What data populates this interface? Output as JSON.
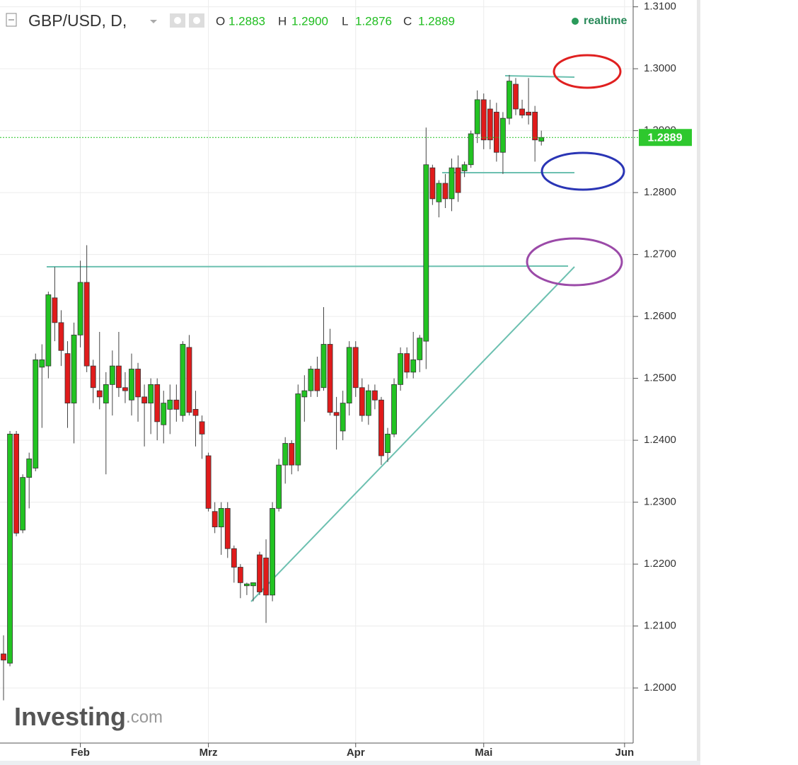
{
  "chart_data": {
    "type": "candlestick",
    "title": "GBP/USD, D,",
    "status": "realtime",
    "watermark": [
      "Investing",
      ".com"
    ],
    "ohlc_labels": [
      "O",
      "H",
      "L",
      "C"
    ],
    "ohlc_values": [
      1.2883,
      {
        "value": 1.29,
        "label": "1.2900"
      },
      1.2876,
      1.2889
    ],
    "last_price": 1.2889,
    "up_color": "#22c322",
    "down_color": "#e01b1b",
    "ylim": [
      1.1911,
      1.3111
    ],
    "yticks": [
      {
        "value": 1.2,
        "label": "1.2000"
      },
      {
        "value": 1.21,
        "label": "1.2100"
      },
      {
        "value": 1.22,
        "label": "1.2200"
      },
      {
        "value": 1.23,
        "label": "1.2300"
      },
      {
        "value": 1.24,
        "label": "1.2400"
      },
      {
        "value": 1.25,
        "label": "1.2500"
      },
      {
        "value": 1.26,
        "label": "1.2600"
      },
      {
        "value": 1.27,
        "label": "1.2700"
      },
      {
        "value": 1.28,
        "label": "1.2800"
      },
      {
        "value": 1.29,
        "label": "1.2900"
      },
      {
        "value": 1.3,
        "label": "1.3000"
      },
      {
        "value": 1.31,
        "label": "1.3100"
      }
    ],
    "grid": true,
    "categories": [
      null,
      null,
      null,
      null,
      null,
      null,
      null,
      null,
      null,
      null,
      null,
      null,
      "Feb",
      null,
      null,
      null,
      null,
      null,
      null,
      null,
      null,
      null,
      null,
      null,
      null,
      null,
      null,
      null,
      null,
      null,
      null,
      null,
      "Mrz",
      null,
      null,
      null,
      null,
      null,
      null,
      null,
      null,
      null,
      null,
      null,
      null,
      null,
      null,
      null,
      null,
      null,
      null,
      null,
      null,
      null,
      null,
      "Apr",
      null,
      null,
      null,
      null,
      null,
      null,
      null,
      null,
      null,
      null,
      null,
      null,
      null,
      null,
      null,
      null,
      null,
      null,
      null,
      "Mai",
      null,
      null,
      null,
      null,
      null,
      null,
      null,
      null,
      null,
      null,
      null,
      null,
      null,
      null,
      null,
      null,
      null,
      null,
      null,
      null,
      null,
      "Jun",
      null
    ],
    "open": [
      1.2055,
      1.204,
      1.241,
      1.2255,
      1.234,
      1.2355,
      1.2518,
      1.252,
      1.263,
      1.259,
      1.254,
      1.246,
      1.257,
      1.2655,
      1.252,
      1.248,
      1.246,
      1.249,
      1.252,
      1.2485,
      1.2465,
      1.2515,
      1.247,
      1.246,
      1.249,
      1.2425,
      1.245,
      1.2465,
      1.244,
      1.255,
      1.245,
      1.243,
      1.2375,
      1.2285,
      1.226,
      1.229,
      1.2225,
      1.2195,
      1.2165,
      1.2165,
      1.2215,
      1.221,
      1.215,
      1.229,
      1.236,
      1.2395,
      1.236,
      1.247,
      1.248,
      1.2515,
      1.2485,
      1.2555,
      1.2445,
      1.2415,
      1.246,
      1.255,
      1.2485,
      1.244,
      1.248,
      1.2465,
      1.238,
      1.241,
      1.249,
      1.254,
      1.251,
      1.253,
      1.256,
      1.284,
      1.2785,
      1.2815,
      1.279,
      1.284,
      1.2835,
      1.2845,
      1.2895,
      1.295,
      1.2935,
      1.293,
      1.2865,
      1.292,
      1.2975,
      1.2935,
      1.293,
      1.293,
      1.2883,
      null,
      null,
      null,
      null,
      null,
      null,
      null,
      null,
      null,
      null,
      null,
      null,
      null,
      null
    ],
    "high": [
      1.2085,
      1.2415,
      1.2415,
      1.2345,
      1.238,
      1.254,
      1.2555,
      1.264,
      1.268,
      1.261,
      1.256,
      1.259,
      1.269,
      1.2715,
      1.253,
      1.2575,
      1.251,
      1.2545,
      1.2575,
      1.251,
      1.254,
      1.2525,
      1.249,
      1.25,
      1.25,
      1.248,
      1.249,
      1.249,
      1.256,
      1.257,
      1.248,
      1.244,
      1.238,
      1.23,
      1.23,
      1.23,
      1.223,
      1.22,
      1.217,
      1.217,
      1.222,
      1.224,
      1.23,
      1.237,
      1.2405,
      1.24,
      1.249,
      1.2505,
      1.252,
      1.2535,
      1.2615,
      1.258,
      1.247,
      1.248,
      1.256,
      1.256,
      1.25,
      1.249,
      1.249,
      1.247,
      1.242,
      1.25,
      1.255,
      1.255,
      1.2575,
      1.257,
      1.2905,
      1.2845,
      1.282,
      1.283,
      1.2855,
      1.286,
      1.285,
      1.29,
      1.2965,
      1.296,
      1.295,
      1.2945,
      1.293,
      1.299,
      1.2985,
      1.295,
      1.2985,
      1.294,
      1.29,
      null,
      null,
      null,
      null,
      null,
      null,
      null,
      null,
      null,
      null,
      null,
      null,
      null,
      null
    ],
    "low": [
      1.198,
      1.2035,
      1.2245,
      1.225,
      1.229,
      1.235,
      1.242,
      1.25,
      1.256,
      1.252,
      1.242,
      1.2395,
      1.255,
      1.251,
      1.246,
      1.245,
      1.2345,
      1.244,
      1.247,
      1.246,
      1.244,
      1.243,
      1.239,
      1.241,
      1.24,
      1.2395,
      1.241,
      1.243,
      1.243,
      1.244,
      1.239,
      1.237,
      1.2285,
      1.225,
      1.2215,
      1.221,
      1.217,
      1.2145,
      1.215,
      1.214,
      1.215,
      1.2105,
      1.214,
      1.2285,
      1.233,
      1.2345,
      1.235,
      1.243,
      1.247,
      1.247,
      1.248,
      1.244,
      1.2385,
      1.24,
      1.244,
      1.247,
      1.243,
      1.2425,
      1.245,
      1.236,
      1.2365,
      1.2405,
      1.248,
      1.25,
      1.25,
      1.251,
      1.2515,
      1.278,
      1.276,
      1.2775,
      1.277,
      1.2785,
      1.2825,
      1.284,
      1.288,
      1.287,
      1.287,
      1.285,
      1.283,
      1.291,
      1.2925,
      1.292,
      1.291,
      1.285,
      1.2876,
      null,
      null,
      null,
      null,
      null,
      null,
      null,
      null,
      null,
      null,
      null,
      null,
      null,
      null
    ],
    "close": [
      1.2045,
      1.241,
      1.225,
      1.234,
      1.237,
      1.253,
      1.253,
      1.2635,
      1.259,
      1.2545,
      1.246,
      1.257,
      1.2655,
      1.252,
      1.2485,
      1.247,
      1.249,
      1.252,
      1.2485,
      1.248,
      1.2515,
      1.247,
      1.246,
      1.249,
      1.243,
      1.246,
      1.2465,
      1.245,
      1.2555,
      1.2445,
      1.244,
      1.241,
      1.229,
      1.226,
      1.229,
      1.2225,
      1.2195,
      1.217,
      1.2168,
      1.217,
      1.2155,
      1.215,
      1.229,
      1.236,
      1.2395,
      1.236,
      1.2475,
      1.248,
      1.2515,
      1.248,
      1.2555,
      1.2445,
      1.244,
      1.246,
      1.255,
      1.2485,
      1.244,
      1.248,
      1.2465,
      1.2375,
      1.241,
      1.249,
      1.254,
      1.251,
      1.253,
      1.2565,
      1.2845,
      1.279,
      1.2815,
      1.279,
      1.284,
      1.28,
      1.2845,
      1.2895,
      1.295,
      1.2885,
      1.2885,
      1.2865,
      1.292,
      1.298,
      1.2935,
      1.2925,
      1.2925,
      1.2885,
      1.2889,
      null,
      null,
      null,
      null,
      null,
      null,
      null,
      null,
      null,
      null,
      null,
      null,
      null,
      null
    ]
  }
}
